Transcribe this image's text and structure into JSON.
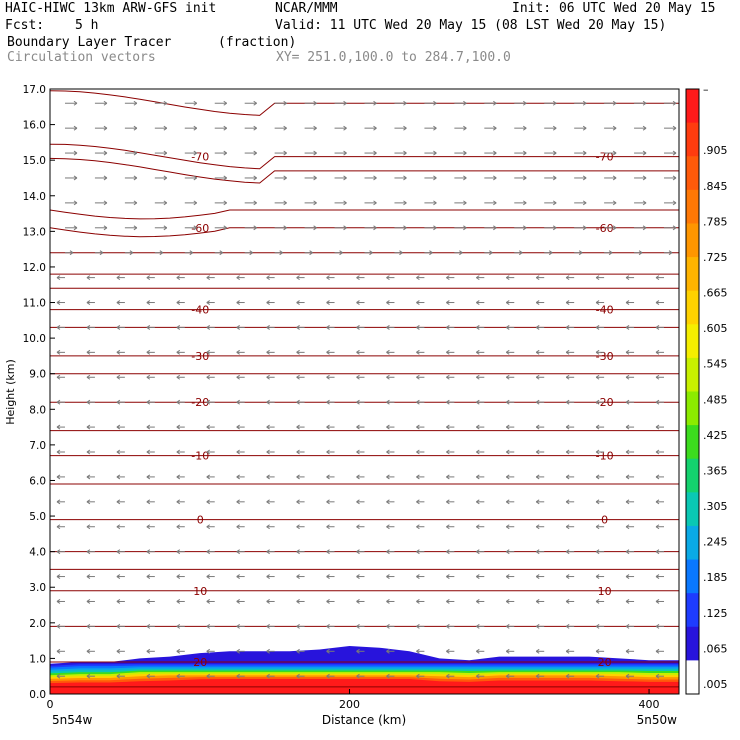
{
  "header": {
    "model": "HAIC-HIWC 13km ARW-GFS init",
    "org": "NCAR/MMM",
    "init": "Init: 06 UTC Wed 20 May 15",
    "fcst_label": "Fcst:",
    "fcst_value": "5 h",
    "valid": "Valid: 11 UTC Wed 20 May 15 (08 LST Wed 20 May 15)",
    "field": "Boundary Layer Tracer",
    "units": "(fraction)",
    "vectors": "Circulation vectors",
    "xy": "XY= 251.0,100.0 to 284.7,100.0"
  },
  "chart_data": {
    "type": "heatmap",
    "xlabel": "Distance (km)",
    "ylabel": "Height (km)",
    "xlim": [
      0,
      420
    ],
    "ylim": [
      0,
      17
    ],
    "x_ticks": [
      "0",
      "200",
      "400"
    ],
    "x_tick_values": [
      0,
      200,
      400
    ],
    "x_end_labels": [
      "5n54w",
      "5n50w"
    ],
    "y_ticks": [
      "0.0",
      "1.0",
      "2.0",
      "3.0",
      "4.0",
      "5.0",
      "6.0",
      "7.0",
      "8.0",
      "9.0",
      "10.0",
      "11.0",
      "12.0",
      "13.0",
      "14.0",
      "15.0",
      "16.0",
      "17.0"
    ],
    "colorbar": {
      "labels": [
        "–",
        ".905",
        ".845",
        ".785",
        ".725",
        ".665",
        ".605",
        ".545",
        ".485",
        ".425",
        ".365",
        ".305",
        ".245",
        ".185",
        ".125",
        ".065",
        ".005"
      ],
      "colors": [
        "#ff1a1a",
        "#ff3c0f",
        "#ff5a0a",
        "#ff7805",
        "#ff9600",
        "#ffb400",
        "#ffd200",
        "#f5ee00",
        "#c8f000",
        "#8ceb00",
        "#3cdc1e",
        "#14d26e",
        "#0ac8b4",
        "#0aaae6",
        "#0a78ff",
        "#1e3cff",
        "#2814dc",
        "#ffffff"
      ]
    },
    "tracer": {
      "x": [
        0,
        20,
        40,
        60,
        80,
        100,
        120,
        140,
        160,
        180,
        200,
        220,
        240,
        260,
        280,
        300,
        320,
        340,
        360,
        380,
        400,
        420
      ],
      "top_km": [
        0.85,
        0.9,
        0.9,
        1.0,
        1.05,
        1.15,
        1.2,
        1.2,
        1.2,
        1.25,
        1.35,
        1.3,
        1.2,
        1.0,
        0.95,
        1.05,
        1.05,
        1.05,
        1.05,
        1.0,
        0.95,
        0.95
      ]
    },
    "isotherms": [
      {
        "label": "-70",
        "y": 15.1
      },
      {
        "label": "-60",
        "y": 13.1
      },
      {
        "label": "-40",
        "y": 10.8
      },
      {
        "label": "-30",
        "y": 9.5
      },
      {
        "label": "-20",
        "y": 8.2
      },
      {
        "label": "-10",
        "y": 6.7
      },
      {
        "label": "0",
        "y": 4.9
      },
      {
        "label": "10",
        "y": 2.9
      },
      {
        "label": "20",
        "y": 0.9
      }
    ],
    "isotherm_levels_km": [
      16.6,
      15.1,
      14.7,
      13.6,
      13.1,
      12.4,
      11.8,
      11.4,
      10.8,
      10.3,
      9.5,
      9.0,
      8.2,
      7.4,
      6.7,
      5.9,
      4.9,
      4.0,
      3.5,
      2.9,
      1.9,
      0.9,
      0.2
    ],
    "wind": {
      "u_low": -1,
      "u_high": 1,
      "w": 0
    }
  }
}
